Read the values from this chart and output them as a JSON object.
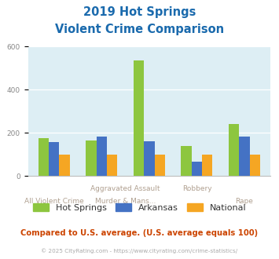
{
  "title_line1": "2019 Hot Springs",
  "title_line2": "Violent Crime Comparison",
  "groups": [
    {
      "hs": 175,
      "ar": 158,
      "na": 100
    },
    {
      "hs": 165,
      "ar": 183,
      "na": 100
    },
    {
      "hs": 535,
      "ar": 163,
      "na": 100
    },
    {
      "hs": 140,
      "ar": 67,
      "na": 100
    },
    {
      "hs": 242,
      "ar": 185,
      "na": 100
    }
  ],
  "colors": {
    "Hot Springs": "#8dc63f",
    "Arkansas": "#4472c4",
    "National": "#f5a623"
  },
  "ylim": [
    0,
    600
  ],
  "yticks": [
    0,
    200,
    400,
    600
  ],
  "plot_bg": "#ddeef4",
  "title_color": "#1a6aad",
  "label_color": "#b0a090",
  "legend_label_color": "#333333",
  "footer_text": "Compared to U.S. average. (U.S. average equals 100)",
  "footer_color": "#cc4400",
  "copyright_text": "© 2025 CityRating.com - https://www.cityrating.com/crime-statistics/",
  "copyright_color": "#aaaaaa"
}
